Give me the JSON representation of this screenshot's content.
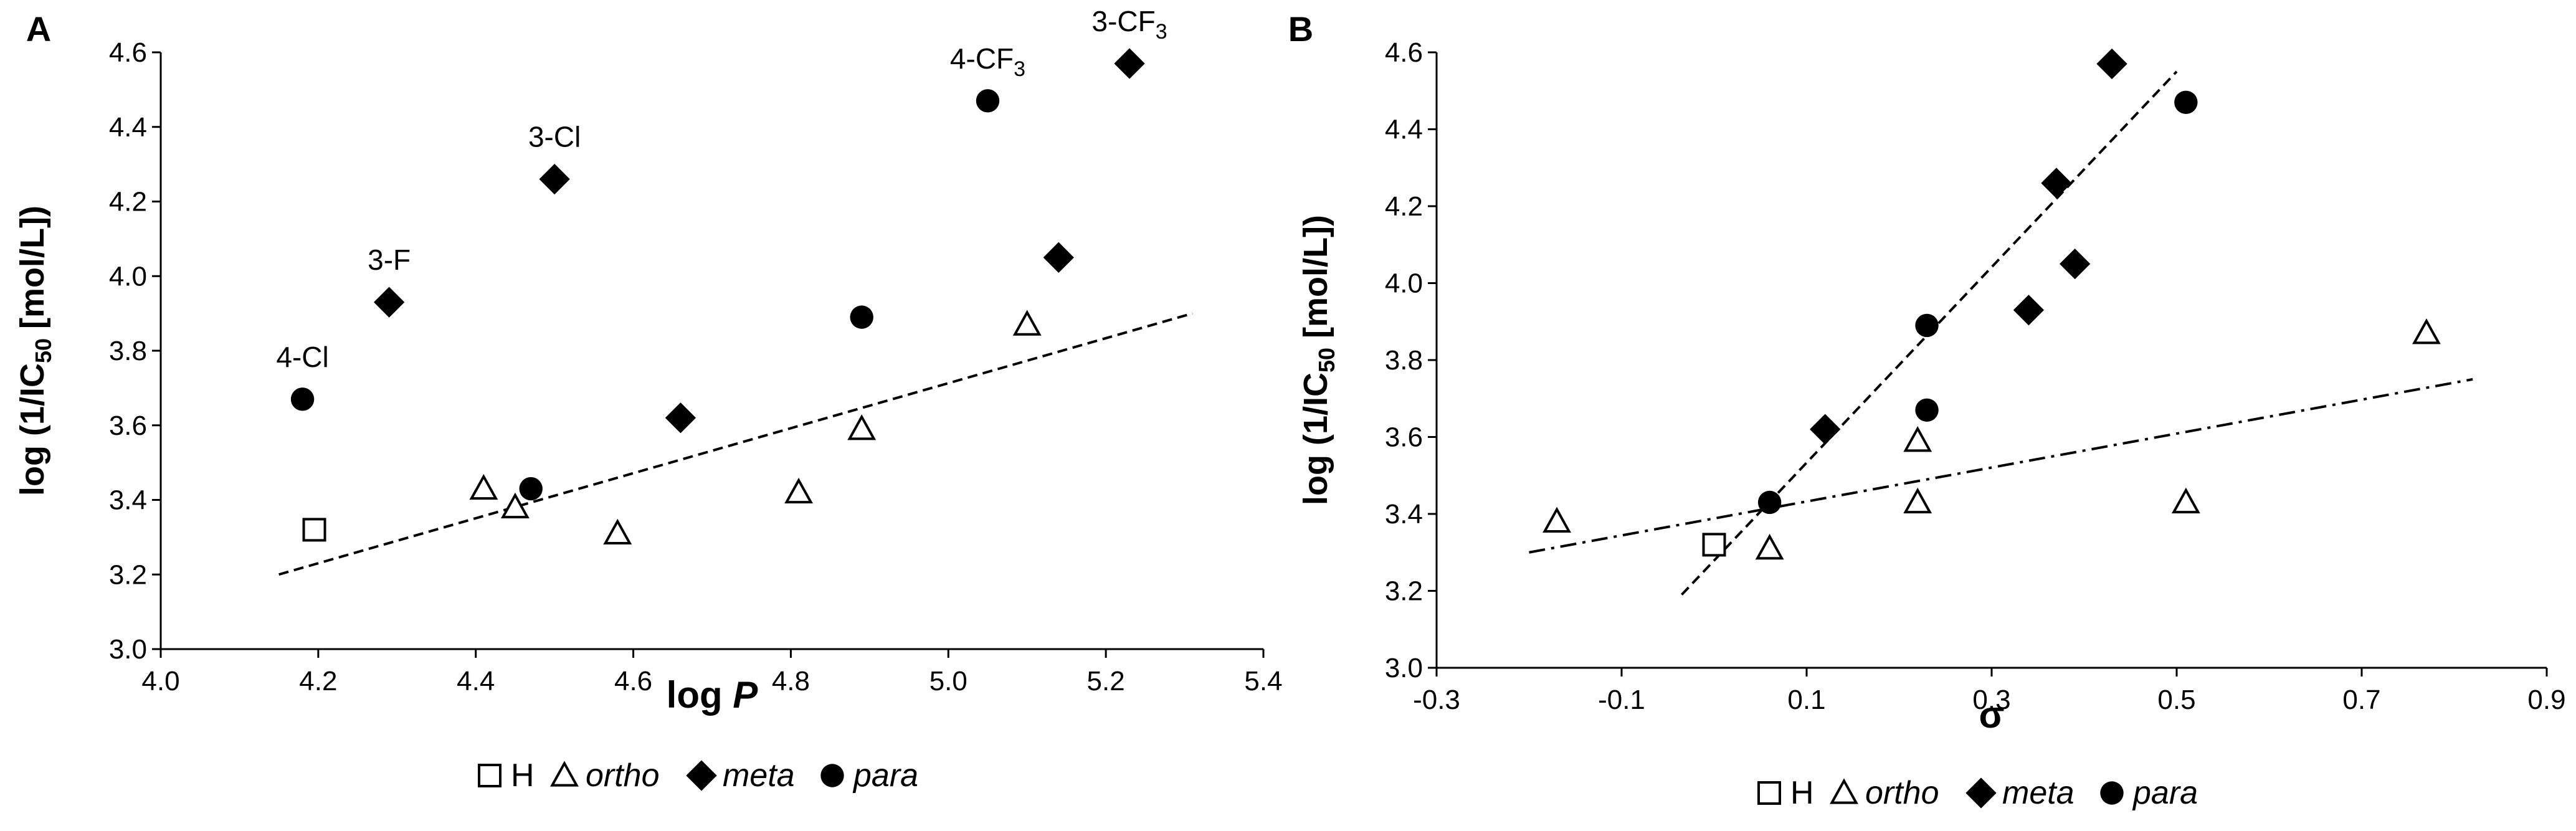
{
  "chart_data": [
    {
      "type": "scatter",
      "panel_label": "A",
      "xlabel": "log",
      "xlabel_var": "P",
      "ylabel_pre": "log (1/IC",
      "ylabel_sub": "50",
      "ylabel_post": " [mol/L])",
      "xlim": [
        4.0,
        5.4
      ],
      "ylim": [
        3.0,
        4.6
      ],
      "xticks": [
        "4.0",
        "4.2",
        "4.4",
        "4.6",
        "4.8",
        "5.0",
        "5.2",
        "5.4"
      ],
      "yticks": [
        "3.0",
        "3.2",
        "3.4",
        "3.6",
        "3.8",
        "4.0",
        "4.2",
        "4.4",
        "4.6"
      ],
      "series": [
        {
          "name": "H",
          "marker": "square-open",
          "points": [
            {
              "x": 4.195,
              "y": 3.32
            }
          ]
        },
        {
          "name": "ortho",
          "marker": "triangle-open",
          "points": [
            {
              "x": 4.41,
              "y": 3.43
            },
            {
              "x": 4.45,
              "y": 3.38
            },
            {
              "x": 4.58,
              "y": 3.31
            },
            {
              "x": 4.81,
              "y": 3.42
            },
            {
              "x": 4.89,
              "y": 3.59
            },
            {
              "x": 5.1,
              "y": 3.87
            }
          ]
        },
        {
          "name": "meta",
          "marker": "diamond-filled",
          "points": [
            {
              "x": 4.29,
              "y": 3.93
            },
            {
              "x": 4.5,
              "y": 4.26
            },
            {
              "x": 4.66,
              "y": 3.62
            },
            {
              "x": 5.14,
              "y": 4.05
            },
            {
              "x": 5.23,
              "y": 4.57
            }
          ]
        },
        {
          "name": "para",
          "marker": "circle-filled",
          "points": [
            {
              "x": 4.18,
              "y": 3.67
            },
            {
              "x": 4.47,
              "y": 3.43
            },
            {
              "x": 4.89,
              "y": 3.89
            },
            {
              "x": 5.05,
              "y": 4.47
            }
          ]
        }
      ],
      "fit_lines": [
        {
          "name": "trend",
          "style": "dashed",
          "x": [
            4.15,
            5.31
          ],
          "y": [
            3.2,
            3.9
          ]
        }
      ],
      "annotations": [
        {
          "base": "4-Cl",
          "sub": "",
          "x": 4.18,
          "y": 3.67
        },
        {
          "base": "3-F",
          "sub": "",
          "x": 4.29,
          "y": 3.93
        },
        {
          "base": "3-Cl",
          "sub": "",
          "x": 4.5,
          "y": 4.26
        },
        {
          "base": "4-CF",
          "sub": "3",
          "x": 5.05,
          "y": 4.47
        },
        {
          "base": "3-CF",
          "sub": "3",
          "x": 5.23,
          "y": 4.57
        }
      ],
      "legend": [
        {
          "label": "H",
          "marker": "square-open",
          "italic": false
        },
        {
          "label": "ortho",
          "marker": "triangle-open",
          "italic": true
        },
        {
          "label": "meta",
          "marker": "diamond-filled",
          "italic": true
        },
        {
          "label": "para",
          "marker": "circle-filled",
          "italic": true
        }
      ]
    },
    {
      "type": "scatter",
      "panel_label": "B",
      "xlabel": "σ",
      "xlabel_var": "",
      "ylabel_pre": "log (1/IC",
      "ylabel_sub": "50",
      "ylabel_post": " [mol/L])",
      "xlim": [
        -0.3,
        0.9
      ],
      "ylim": [
        3.0,
        4.6
      ],
      "xticks": [
        "-0.3",
        "-0.1",
        "0.1",
        "0.3",
        "0.5",
        "0.7",
        "0.9"
      ],
      "yticks": [
        "3.0",
        "3.2",
        "3.4",
        "3.6",
        "3.8",
        "4.0",
        "4.2",
        "4.4",
        "4.6"
      ],
      "series": [
        {
          "name": "H",
          "marker": "square-open",
          "points": [
            {
              "x": 0.0,
              "y": 3.32
            }
          ]
        },
        {
          "name": "ortho",
          "marker": "triangle-open",
          "points": [
            {
              "x": -0.17,
              "y": 3.38
            },
            {
              "x": 0.06,
              "y": 3.31
            },
            {
              "x": 0.22,
              "y": 3.43
            },
            {
              "x": 0.22,
              "y": 3.59
            },
            {
              "x": 0.51,
              "y": 3.43
            },
            {
              "x": 0.77,
              "y": 3.87
            }
          ]
        },
        {
          "name": "meta",
          "marker": "diamond-filled",
          "points": [
            {
              "x": 0.12,
              "y": 3.62
            },
            {
              "x": 0.34,
              "y": 3.93
            },
            {
              "x": 0.37,
              "y": 4.26
            },
            {
              "x": 0.39,
              "y": 4.05
            },
            {
              "x": 0.43,
              "y": 4.57
            }
          ]
        },
        {
          "name": "para",
          "marker": "circle-filled",
          "points": [
            {
              "x": 0.06,
              "y": 3.43
            },
            {
              "x": 0.23,
              "y": 3.67
            },
            {
              "x": 0.23,
              "y": 3.89
            },
            {
              "x": 0.51,
              "y": 4.47
            }
          ]
        }
      ],
      "fit_lines": [
        {
          "name": "meta-para fit",
          "style": "dashed",
          "x": [
            -0.035,
            0.5
          ],
          "y": [
            3.19,
            4.55
          ]
        },
        {
          "name": "ortho fit",
          "style": "dashdot",
          "x": [
            -0.2,
            0.82
          ],
          "y": [
            3.3,
            3.75
          ]
        }
      ],
      "annotations": [],
      "legend": [
        {
          "label": "H",
          "marker": "square-open",
          "italic": false
        },
        {
          "label": "ortho",
          "marker": "triangle-open",
          "italic": true
        },
        {
          "label": "meta",
          "marker": "diamond-filled",
          "italic": true
        },
        {
          "label": "para",
          "marker": "circle-filled",
          "italic": true
        }
      ]
    }
  ]
}
